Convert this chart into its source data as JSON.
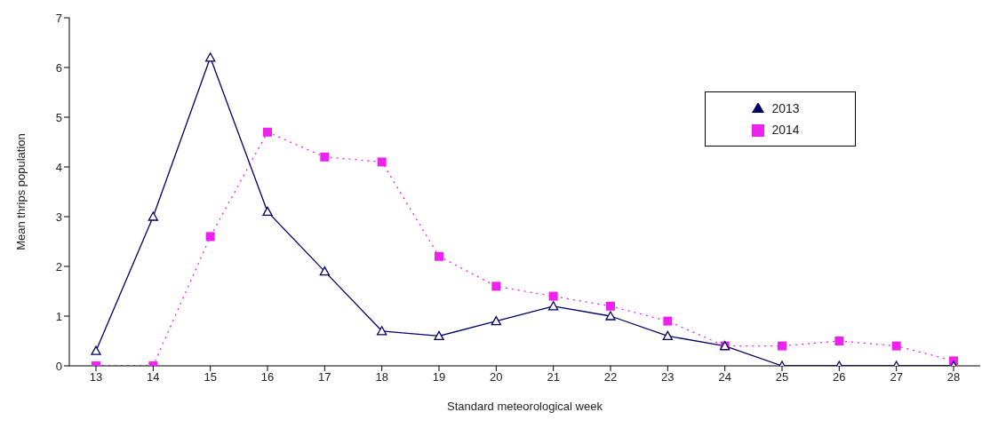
{
  "chart_data": {
    "type": "line",
    "xlabel": "Standard meteorological week",
    "ylabel": "Mean thrips population",
    "categories": [
      "13",
      "14",
      "15",
      "16",
      "17",
      "18",
      "19",
      "20",
      "21",
      "22",
      "23",
      "24",
      "25",
      "26",
      "27",
      "28"
    ],
    "series": [
      {
        "name": "2013",
        "color": "#000066",
        "marker": "triangle",
        "line_style": "solid",
        "values": [
          0.3,
          3.0,
          6.2,
          3.1,
          1.9,
          0.7,
          0.6,
          0.9,
          1.2,
          1.0,
          0.6,
          0.4,
          0,
          0,
          0,
          0
        ]
      },
      {
        "name": "2014",
        "color": "#ee22ee",
        "marker": "square",
        "line_style": "dotted",
        "values": [
          0,
          0,
          2.6,
          4.7,
          4.2,
          4.1,
          2.2,
          1.6,
          1.4,
          1.2,
          0.9,
          0.4,
          0.4,
          0.5,
          0.4,
          0.1
        ]
      }
    ],
    "ylim": [
      0,
      7
    ],
    "yticks": [
      0,
      1,
      2,
      3,
      4,
      5,
      6,
      7
    ],
    "grid": false,
    "legend": "top right"
  }
}
